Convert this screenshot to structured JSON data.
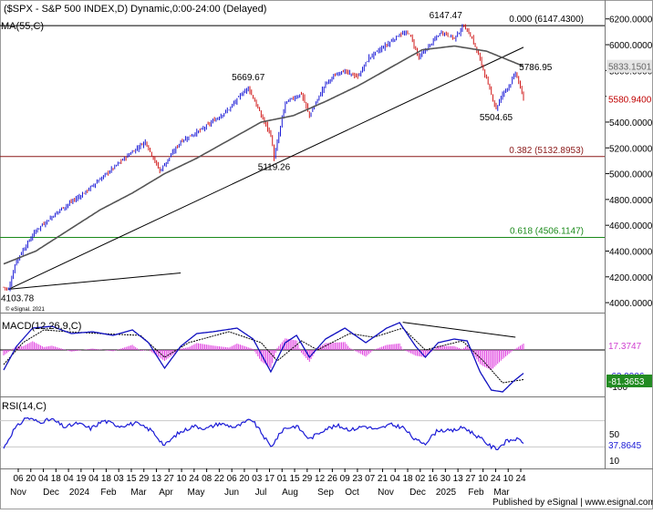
{
  "header": {
    "title": "($SPX - S&P 500 INDEX,D) Dynamic,0:00-24:00 (Delayed)",
    "ma_label": "MA(55,C)",
    "copyright": "© eSignal, 2021",
    "footer": "Published by eSignal | www.esignal.com"
  },
  "colors": {
    "up": "#1a1ad6",
    "down": "#d01818",
    "ma": "#555555",
    "trend": "#000000",
    "fib0": "#000000",
    "fib382": "#8b1a1a",
    "fib618": "#1a8a1a",
    "macd": "#1010c0",
    "signal": "#000000",
    "hist": "#e040e0",
    "rsi": "#1a1ad6",
    "price_tag": "#c00000",
    "ma_tag": "#666666",
    "macd_tag": "#d040d0",
    "signal_tag": "#228b22",
    "rsi_tag": "#1a1ad6"
  },
  "chart_data": [
    {
      "type": "candlestick",
      "title": "$SPX - S&P 500 INDEX, D",
      "series_label": "MA(55,C)",
      "y_ticks": [
        4000,
        4200,
        4400,
        4600,
        4800,
        5000,
        5200,
        5400,
        5600,
        5800,
        6000,
        6200
      ],
      "ylim": [
        3930,
        6290
      ],
      "x_tick_labels": [
        "06",
        "20",
        "04",
        "18",
        "04",
        "19",
        "04",
        "18",
        "03",
        "15",
        "29",
        "13",
        "27",
        "10",
        "24",
        "08",
        "22",
        "06",
        "20",
        "03",
        "17",
        "01",
        "15",
        "29",
        "12",
        "26",
        "09",
        "23",
        "07",
        "21",
        "04",
        "18",
        "02",
        "16",
        "30",
        "13",
        "27",
        "10",
        "24",
        "10",
        "24"
      ],
      "x_month_labels": [
        "Nov",
        "Dec",
        "2024",
        "Feb",
        "Mar",
        "Apr",
        "May",
        "Jun",
        "Jul",
        "Aug",
        "Sep",
        "Oct",
        "Nov",
        "Dec",
        "2025",
        "Feb",
        "Mar"
      ],
      "close_anchors": [
        {
          "i": 0,
          "v": 4120
        },
        {
          "i": 3,
          "v": 4103.78
        },
        {
          "i": 8,
          "v": 4330
        },
        {
          "i": 20,
          "v": 4560
        },
        {
          "i": 35,
          "v": 4720
        },
        {
          "i": 50,
          "v": 4850
        },
        {
          "i": 62,
          "v": 4980
        },
        {
          "i": 77,
          "v": 5140
        },
        {
          "i": 88,
          "v": 5250
        },
        {
          "i": 97,
          "v": 5020
        },
        {
          "i": 110,
          "v": 5250
        },
        {
          "i": 124,
          "v": 5350
        },
        {
          "i": 140,
          "v": 5500
        },
        {
          "i": 148,
          "v": 5620
        },
        {
          "i": 152,
          "v": 5669.67
        },
        {
          "i": 160,
          "v": 5450
        },
        {
          "i": 166,
          "v": 5300
        },
        {
          "i": 168,
          "v": 5119.26
        },
        {
          "i": 175,
          "v": 5550
        },
        {
          "i": 185,
          "v": 5620
        },
        {
          "i": 190,
          "v": 5450
        },
        {
          "i": 200,
          "v": 5700
        },
        {
          "i": 210,
          "v": 5800
        },
        {
          "i": 220,
          "v": 5750
        },
        {
          "i": 227,
          "v": 5900
        },
        {
          "i": 238,
          "v": 6000
        },
        {
          "i": 246,
          "v": 6080
        },
        {
          "i": 252,
          "v": 6090
        },
        {
          "i": 258,
          "v": 5900
        },
        {
          "i": 265,
          "v": 6000
        },
        {
          "i": 272,
          "v": 6100
        },
        {
          "i": 280,
          "v": 6050
        },
        {
          "i": 286,
          "v": 6147.47
        },
        {
          "i": 291,
          "v": 6050
        },
        {
          "i": 297,
          "v": 5850
        },
        {
          "i": 302,
          "v": 5650
        },
        {
          "i": 306,
          "v": 5504.65
        },
        {
          "i": 310,
          "v": 5620
        },
        {
          "i": 315,
          "v": 5700
        },
        {
          "i": 318,
          "v": 5786.95
        },
        {
          "i": 323,
          "v": 5580.94
        }
      ],
      "ma55_anchors": [
        {
          "i": 0,
          "v": 4300
        },
        {
          "i": 20,
          "v": 4400
        },
        {
          "i": 40,
          "v": 4560
        },
        {
          "i": 60,
          "v": 4720
        },
        {
          "i": 80,
          "v": 4850
        },
        {
          "i": 100,
          "v": 5000
        },
        {
          "i": 120,
          "v": 5120
        },
        {
          "i": 140,
          "v": 5260
        },
        {
          "i": 160,
          "v": 5400
        },
        {
          "i": 180,
          "v": 5450
        },
        {
          "i": 200,
          "v": 5560
        },
        {
          "i": 220,
          "v": 5680
        },
        {
          "i": 240,
          "v": 5820
        },
        {
          "i": 260,
          "v": 5960
        },
        {
          "i": 280,
          "v": 5990
        },
        {
          "i": 300,
          "v": 5950
        },
        {
          "i": 323,
          "v": 5833.15
        }
      ],
      "trendlines": [
        {
          "from": {
            "i": 3,
            "v": 4103.78
          },
          "to": {
            "i": 323,
            "v": 5980
          }
        },
        {
          "from": {
            "i": 3,
            "v": 4103.78
          },
          "to": {
            "i": 110,
            "v": 4230
          }
        }
      ],
      "fib_levels": [
        {
          "label": "0.000 (6147.4300)",
          "value": 6147.43,
          "color_key": "fib0"
        },
        {
          "label": "0.382 (5132.8953)",
          "value": 5132.8953,
          "color_key": "fib382"
        },
        {
          "label": "0.618 (4506.1147)",
          "value": 4506.1147,
          "color_key": "fib618"
        }
      ],
      "annotations": [
        {
          "text": "4103.78",
          "i": 3,
          "v": 4103.78,
          "pos": "below"
        },
        {
          "text": "5669.67",
          "i": 152,
          "v": 5669.67,
          "pos": "above"
        },
        {
          "text": "5119.26",
          "i": 168,
          "v": 5119.26,
          "pos": "below"
        },
        {
          "text": "6147.47",
          "i": 286,
          "v": 6147.47,
          "pos": "above-left"
        },
        {
          "text": "5504.65",
          "i": 306,
          "v": 5504.65,
          "pos": "below"
        },
        {
          "text": "5786.95",
          "i": 318,
          "v": 5786.95,
          "pos": "right"
        }
      ],
      "last_price": {
        "value": 5580.94,
        "label": "5580.9400"
      },
      "last_ma": {
        "value": 5833.15,
        "label": "5833.1501"
      }
    },
    {
      "type": "line",
      "title": "MACD(12,26,9,C)",
      "y_ticks": [
        -100
      ],
      "ylim": [
        -125,
        90
      ],
      "macd_anchors": [
        {
          "i": 0,
          "v": -55
        },
        {
          "i": 8,
          "v": 10
        },
        {
          "i": 18,
          "v": 60
        },
        {
          "i": 30,
          "v": 65
        },
        {
          "i": 42,
          "v": 45
        },
        {
          "i": 55,
          "v": 50
        },
        {
          "i": 68,
          "v": 40
        },
        {
          "i": 80,
          "v": 55
        },
        {
          "i": 90,
          "v": 20
        },
        {
          "i": 100,
          "v": -50
        },
        {
          "i": 110,
          "v": 10
        },
        {
          "i": 120,
          "v": 45
        },
        {
          "i": 130,
          "v": 50
        },
        {
          "i": 145,
          "v": 60
        },
        {
          "i": 155,
          "v": 30
        },
        {
          "i": 166,
          "v": -60
        },
        {
          "i": 175,
          "v": 20
        },
        {
          "i": 182,
          "v": 40
        },
        {
          "i": 190,
          "v": -20
        },
        {
          "i": 200,
          "v": 30
        },
        {
          "i": 212,
          "v": 60
        },
        {
          "i": 225,
          "v": 20
        },
        {
          "i": 238,
          "v": 60
        },
        {
          "i": 246,
          "v": 75
        },
        {
          "i": 256,
          "v": 10
        },
        {
          "i": 262,
          "v": -20
        },
        {
          "i": 270,
          "v": 20
        },
        {
          "i": 280,
          "v": 30
        },
        {
          "i": 288,
          "v": 25
        },
        {
          "i": 296,
          "v": -60
        },
        {
          "i": 303,
          "v": -110
        },
        {
          "i": 310,
          "v": -115
        },
        {
          "i": 317,
          "v": -85
        },
        {
          "i": 323,
          "v": -63.99
        }
      ],
      "signal_anchors": [
        {
          "i": 0,
          "v": -40
        },
        {
          "i": 12,
          "v": 20
        },
        {
          "i": 25,
          "v": 55
        },
        {
          "i": 40,
          "v": 50
        },
        {
          "i": 60,
          "v": 45
        },
        {
          "i": 85,
          "v": 40
        },
        {
          "i": 100,
          "v": -20
        },
        {
          "i": 115,
          "v": 20
        },
        {
          "i": 140,
          "v": 50
        },
        {
          "i": 160,
          "v": 20
        },
        {
          "i": 170,
          "v": -30
        },
        {
          "i": 185,
          "v": 25
        },
        {
          "i": 195,
          "v": 0
        },
        {
          "i": 215,
          "v": 45
        },
        {
          "i": 230,
          "v": 35
        },
        {
          "i": 248,
          "v": 60
        },
        {
          "i": 262,
          "v": 0
        },
        {
          "i": 285,
          "v": 25
        },
        {
          "i": 298,
          "v": -30
        },
        {
          "i": 310,
          "v": -90
        },
        {
          "i": 323,
          "v": -81.37
        }
      ],
      "divergence_line": {
        "from": {
          "i": 248,
          "v": 76
        },
        "to": {
          "i": 318,
          "v": 35
        }
      },
      "hist_tag": "17.3747",
      "macd_tag": "-63.9906",
      "signal_tag": "-81.3653"
    },
    {
      "type": "line",
      "title": "RSI(14,C)",
      "y_ticks": [
        50,
        10
      ],
      "ylim": [
        0,
        100
      ],
      "ref_levels": [
        70,
        30
      ],
      "rsi_anchors": [
        {
          "i": 0,
          "v": 28
        },
        {
          "i": 6,
          "v": 55
        },
        {
          "i": 14,
          "v": 75
        },
        {
          "i": 22,
          "v": 68
        },
        {
          "i": 30,
          "v": 72
        },
        {
          "i": 38,
          "v": 60
        },
        {
          "i": 46,
          "v": 66
        },
        {
          "i": 54,
          "v": 58
        },
        {
          "i": 62,
          "v": 70
        },
        {
          "i": 72,
          "v": 62
        },
        {
          "i": 82,
          "v": 66
        },
        {
          "i": 92,
          "v": 55
        },
        {
          "i": 100,
          "v": 32
        },
        {
          "i": 108,
          "v": 50
        },
        {
          "i": 118,
          "v": 62
        },
        {
          "i": 126,
          "v": 58
        },
        {
          "i": 134,
          "v": 66
        },
        {
          "i": 144,
          "v": 60
        },
        {
          "i": 154,
          "v": 72
        },
        {
          "i": 160,
          "v": 52
        },
        {
          "i": 166,
          "v": 30
        },
        {
          "i": 174,
          "v": 58
        },
        {
          "i": 182,
          "v": 62
        },
        {
          "i": 190,
          "v": 42
        },
        {
          "i": 200,
          "v": 58
        },
        {
          "i": 208,
          "v": 62
        },
        {
          "i": 216,
          "v": 56
        },
        {
          "i": 224,
          "v": 62
        },
        {
          "i": 232,
          "v": 56
        },
        {
          "i": 240,
          "v": 64
        },
        {
          "i": 248,
          "v": 60
        },
        {
          "i": 256,
          "v": 40
        },
        {
          "i": 262,
          "v": 36
        },
        {
          "i": 270,
          "v": 56
        },
        {
          "i": 278,
          "v": 54
        },
        {
          "i": 286,
          "v": 60
        },
        {
          "i": 292,
          "v": 50
        },
        {
          "i": 298,
          "v": 40
        },
        {
          "i": 303,
          "v": 30
        },
        {
          "i": 307,
          "v": 28
        },
        {
          "i": 312,
          "v": 38
        },
        {
          "i": 318,
          "v": 42
        },
        {
          "i": 323,
          "v": 37.86
        }
      ],
      "rsi_tag": "37.8645"
    }
  ]
}
